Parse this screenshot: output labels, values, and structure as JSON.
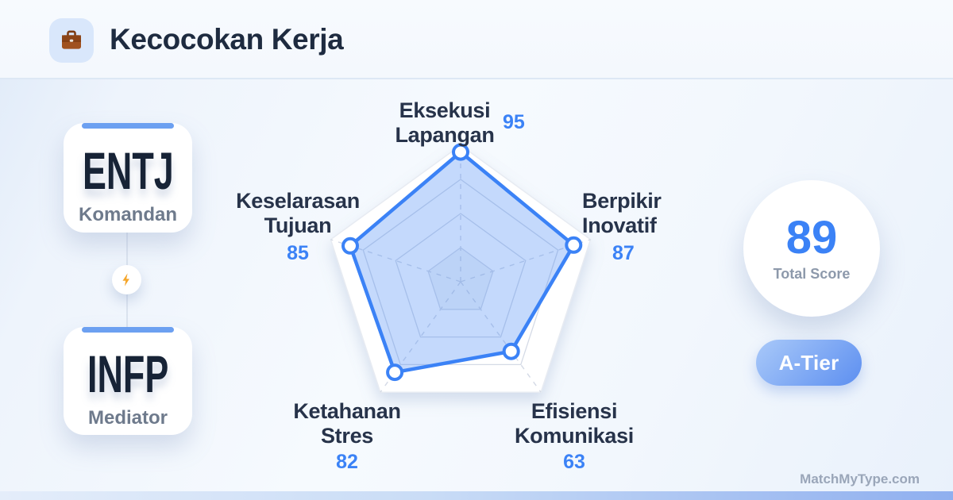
{
  "header": {
    "title": "Kecocokan Kerja"
  },
  "pair": {
    "top_card": {
      "code": "ENTJ",
      "name": "Komandan"
    },
    "bottom_card": {
      "code": "INFP",
      "name": "Mediator"
    }
  },
  "chart_data": {
    "type": "radar",
    "title": "Kecocokan Kerja",
    "categories": [
      "Eksekusi Lapangan",
      "Berpikir Inovatif",
      "Efisiensi Komunikasi",
      "Ketahanan Stres",
      "Keselarasan Tujuan"
    ],
    "values": [
      95,
      87,
      63,
      82,
      85
    ],
    "max": 100,
    "grid_levels": [
      25,
      50,
      75,
      100
    ],
    "legend": "none",
    "stroke_color": "#3b82f6",
    "fill_color": "rgba(59,130,246,0.30)",
    "grid_color": "#d4dae6"
  },
  "axis_labels": {
    "top": {
      "line1": "Eksekusi",
      "line2": "Lapangan",
      "value": "95"
    },
    "right": {
      "line1": "Berpikir",
      "line2": "Inovatif",
      "value": "87"
    },
    "bottom_right": {
      "line1": "Efisiensi",
      "line2": "Komunikasi",
      "value": "63"
    },
    "bottom_left": {
      "line1": "Ketahanan",
      "line2": "Stres",
      "value": "82"
    },
    "left": {
      "line1": "Keselarasan",
      "line2": "Tujuan",
      "value": "85"
    }
  },
  "score": {
    "value": "89",
    "label": "Total Score",
    "tier_badge": "A-Tier"
  },
  "footer": {
    "watermark": "MatchMyType.com"
  },
  "colors": {
    "accent_blue": "#3b82f6",
    "card_bar_blue": "#6ca0f1",
    "bolt_orange": "#f5a62b",
    "tier_gradient_start": "#a9c9f9",
    "tier_gradient_end": "#5d8ff0",
    "dark_text": "#1e2b40",
    "muted_text": "#6e7a8c"
  }
}
